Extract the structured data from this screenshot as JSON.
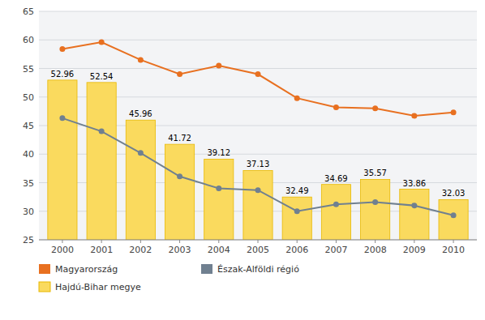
{
  "chart_data": {
    "type": "bar",
    "x": [
      2000,
      2001,
      2002,
      2003,
      2004,
      2005,
      2006,
      2007,
      2008,
      2009,
      2010
    ],
    "xlim": [
      1999.4,
      2010.6
    ],
    "xticks": [
      2000,
      2001,
      2002,
      2003,
      2004,
      2005,
      2006,
      2007,
      2008,
      2009,
      2010
    ],
    "ylim": [
      25,
      65
    ],
    "yticks": [
      25,
      30,
      35,
      40,
      45,
      50,
      55,
      60,
      65
    ],
    "grid": true,
    "legend": "bottom",
    "series": [
      {
        "name": "Magyarország",
        "type": "line",
        "marker": "circle",
        "color": "#E87020",
        "values": [
          58.4,
          59.6,
          56.5,
          54.0,
          55.5,
          54.0,
          49.8,
          48.2,
          48.0,
          46.7,
          47.3
        ]
      },
      {
        "name": "Észak-Alföldi régió",
        "type": "line",
        "marker": "circle",
        "color": "#708090",
        "values": [
          46.3,
          44.0,
          40.2,
          36.1,
          34.0,
          33.7,
          30.0,
          31.2,
          31.6,
          31.0,
          29.3
        ]
      },
      {
        "name": "Hajdú-Bihar megye",
        "type": "bar",
        "color": "#FADA5E",
        "data_labels": true,
        "values": [
          52.96,
          52.54,
          45.96,
          41.72,
          39.12,
          37.13,
          32.49,
          34.69,
          35.57,
          33.86,
          32.03
        ]
      }
    ]
  }
}
